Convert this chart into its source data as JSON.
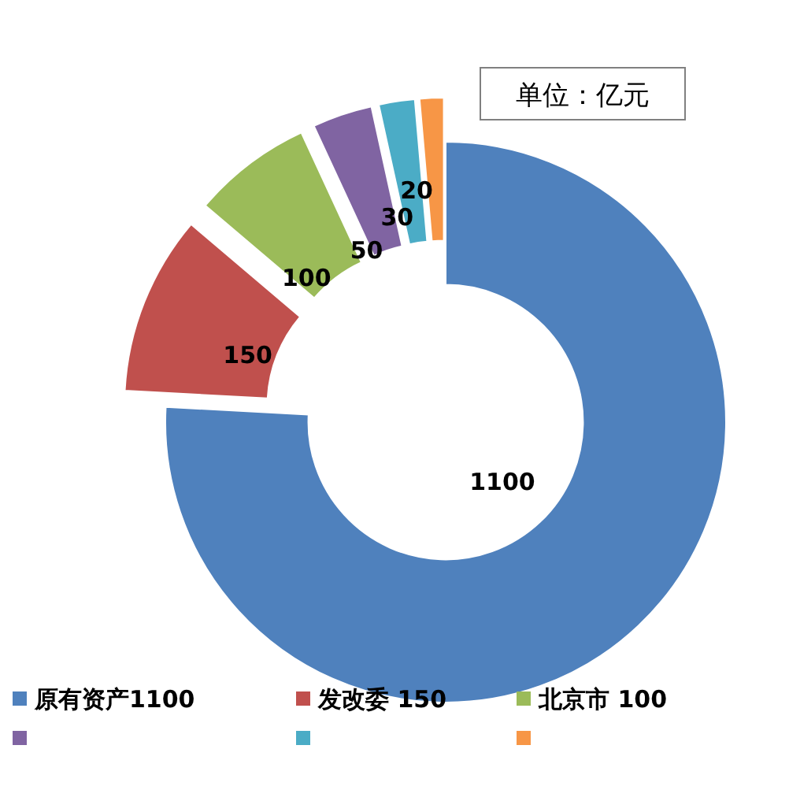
{
  "chart_data": {
    "type": "donut",
    "categories": [
      "原有资产1100",
      "发改委 150",
      "北京市 100",
      null,
      null,
      null
    ],
    "values": [
      1100,
      150,
      100,
      50,
      30,
      20
    ],
    "colors": [
      "#4f81bd",
      "#c0504d",
      "#9bbb59",
      "#8064a2",
      "#4bacc6",
      "#f79646"
    ],
    "data_labels": true,
    "legend": "bottom",
    "annotations": [
      "单位：亿元"
    ]
  }
}
